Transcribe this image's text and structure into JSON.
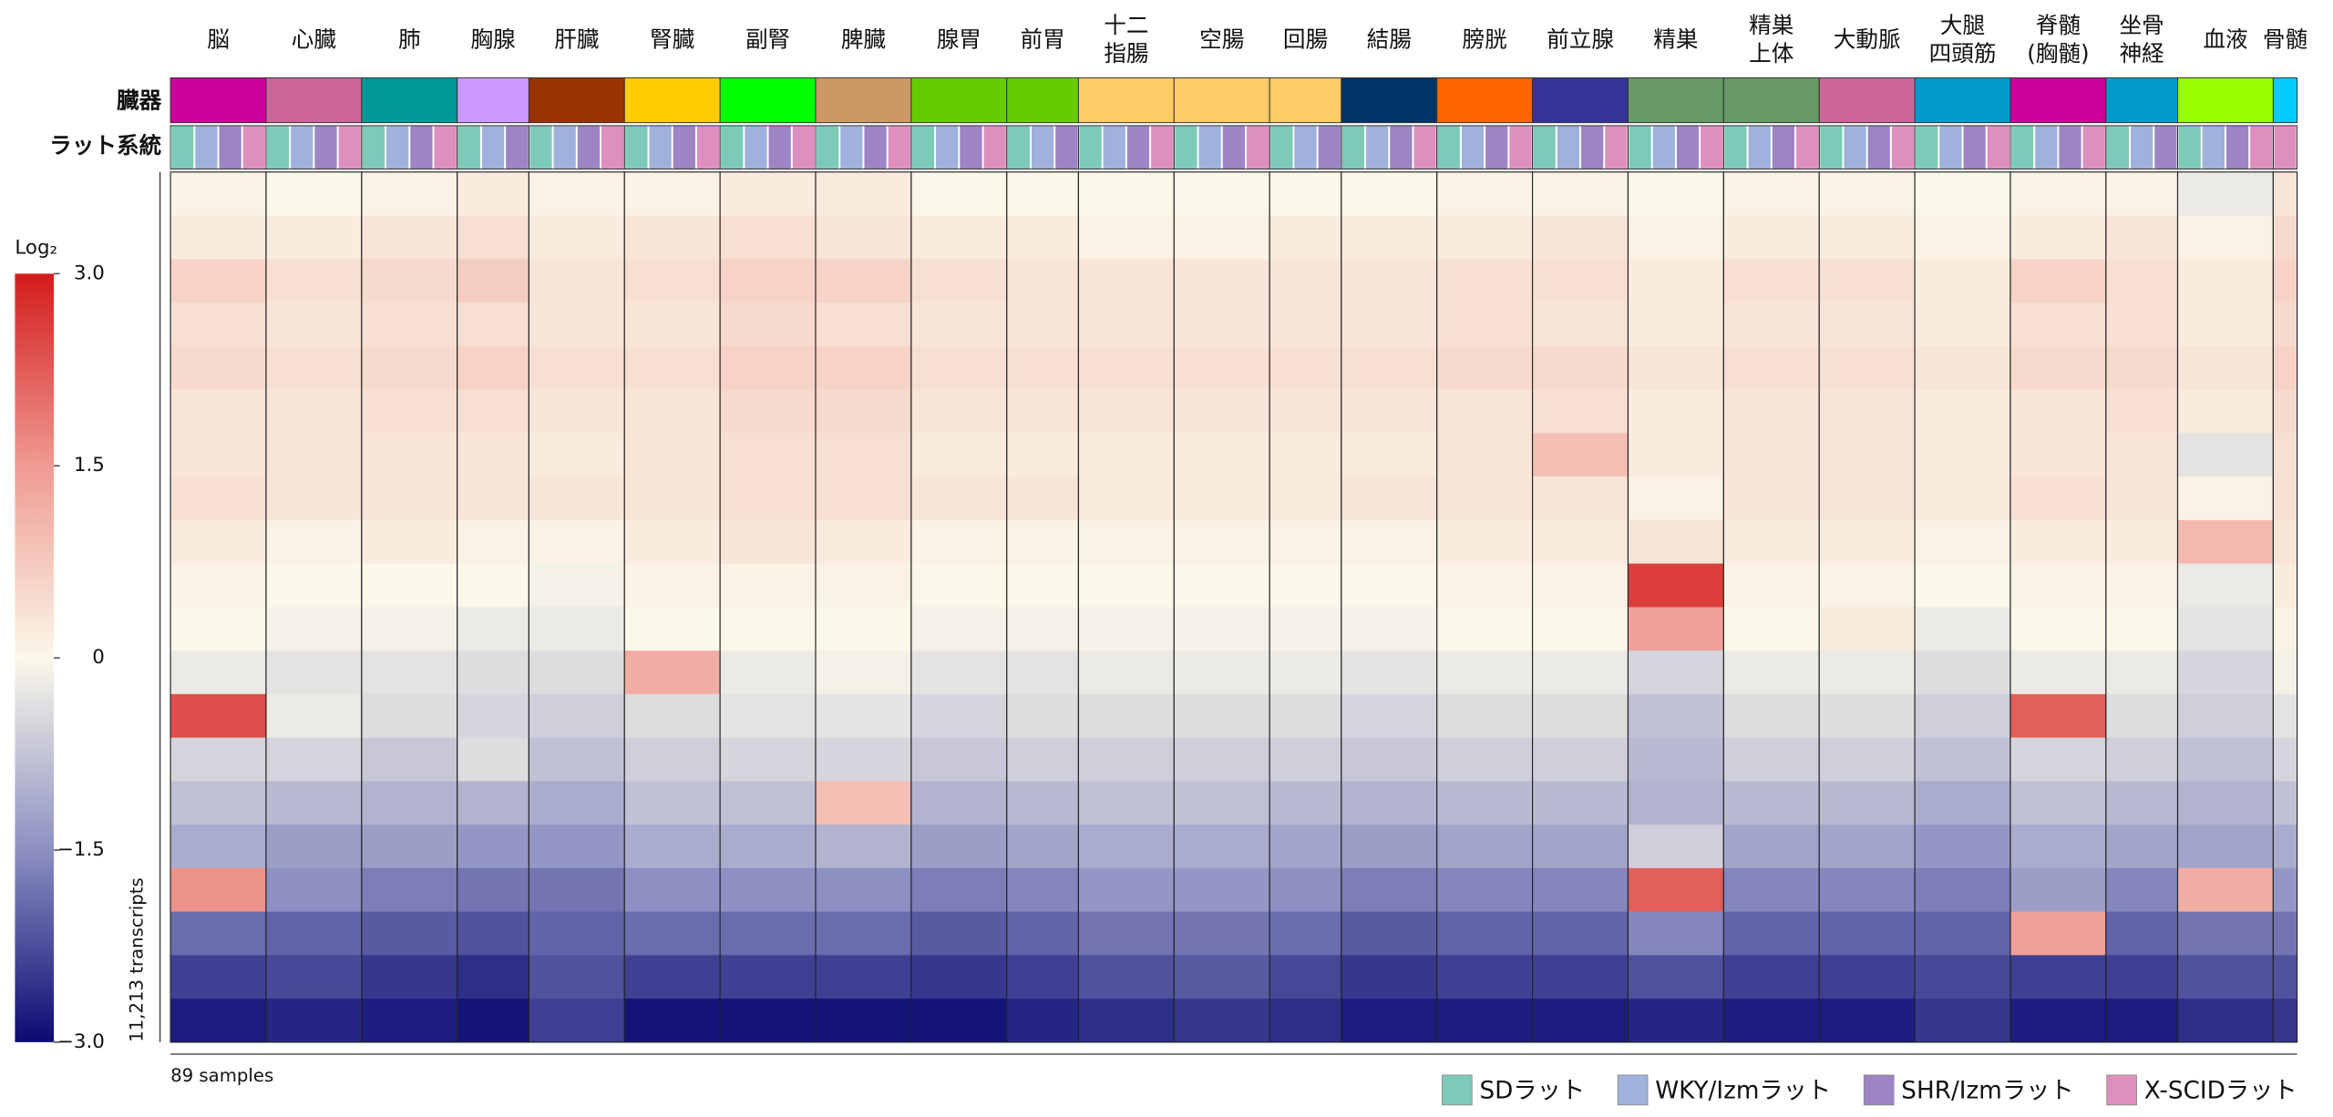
{
  "chart_data": {
    "type": "heatmap",
    "row_labels": [
      "臓器",
      "ラット系統"
    ],
    "colorbar_title": "Log₂",
    "y_label": "11,213 transcripts",
    "x_label": "89 samples",
    "clim": [
      -3,
      3
    ],
    "cticks": [
      {
        "value": -3,
        "label": "−3.0"
      },
      {
        "value": -1.5,
        "label": "−1.5"
      },
      0,
      1.5,
      {
        "value": 3,
        "label": "3.0"
      }
    ],
    "colormap": [
      "#0b0b73",
      "#8c90c2",
      "#fbf8ea",
      "#ef9a92",
      "#d41c1c"
    ],
    "legend": "bottom-right",
    "strains": [
      {
        "name": "SDラット",
        "color": "#7ecab9"
      },
      {
        "name": "WKY/Izmラット",
        "color": "#9fb1dc"
      },
      {
        "name": "SHR/Izmラット",
        "color": "#9d84c4"
      },
      {
        "name": "X-SCIDラット",
        "color": "#de8fbf"
      }
    ],
    "organs": [
      {
        "name": "脳",
        "color": "#cc0099",
        "strains": [
          0,
          1,
          2,
          3
        ],
        "values": [
          0.1,
          0.2,
          0.6,
          0.4,
          0.5,
          0.3,
          0.3,
          0.4,
          0.2,
          0.1,
          0.0,
          -0.2,
          2.4,
          -0.5,
          -0.8,
          -1.1,
          1.6,
          -1.9,
          -2.4,
          -2.8
        ]
      },
      {
        "name": "心臓",
        "color": "#cc6699",
        "strains": [
          0,
          1,
          2,
          3
        ],
        "values": [
          0.0,
          0.2,
          0.4,
          0.3,
          0.4,
          0.3,
          0.3,
          0.3,
          0.1,
          0.0,
          -0.1,
          -0.3,
          -0.2,
          -0.5,
          -0.9,
          -1.3,
          -1.5,
          -2.0,
          -2.3,
          -2.7
        ]
      },
      {
        "name": "肺",
        "color": "#009999",
        "strains": [
          0,
          1,
          2,
          3
        ],
        "values": [
          0.1,
          0.3,
          0.5,
          0.4,
          0.5,
          0.4,
          0.3,
          0.3,
          0.2,
          0.0,
          -0.1,
          -0.3,
          -0.4,
          -0.7,
          -1.0,
          -1.3,
          -1.7,
          -2.1,
          -2.5,
          -2.8
        ]
      },
      {
        "name": "胸腺",
        "color": "#cc99ff",
        "strains": [
          0,
          1,
          2
        ],
        "values": [
          0.2,
          0.4,
          0.7,
          0.4,
          0.6,
          0.4,
          0.3,
          0.3,
          0.1,
          0.0,
          -0.2,
          -0.4,
          -0.5,
          -0.4,
          -1.0,
          -1.4,
          -1.8,
          -2.2,
          -2.6,
          -2.9
        ]
      },
      {
        "name": "肝臓",
        "color": "#993300",
        "strains": [
          0,
          1,
          2,
          3
        ],
        "values": [
          0.1,
          0.2,
          0.3,
          0.3,
          0.4,
          0.3,
          0.2,
          0.3,
          0.1,
          -0.1,
          -0.2,
          -0.4,
          -0.6,
          -0.8,
          -1.1,
          -1.4,
          -1.8,
          -2.0,
          -2.2,
          -2.4
        ]
      },
      {
        "name": "腎臓",
        "color": "#ffcc00",
        "strains": [
          0,
          1,
          2,
          3
        ],
        "values": [
          0.1,
          0.3,
          0.4,
          0.3,
          0.4,
          0.3,
          0.3,
          0.3,
          0.2,
          0.1,
          0.0,
          1.2,
          -0.4,
          -0.6,
          -0.8,
          -1.1,
          -1.5,
          -1.9,
          -2.4,
          -2.9
        ]
      },
      {
        "name": "副腎",
        "color": "#00ff00",
        "strains": [
          0,
          1,
          2,
          3
        ],
        "values": [
          0.2,
          0.4,
          0.6,
          0.5,
          0.6,
          0.5,
          0.4,
          0.4,
          0.3,
          0.1,
          0.0,
          -0.2,
          -0.3,
          -0.5,
          -0.8,
          -1.1,
          -1.5,
          -1.9,
          -2.4,
          -2.9
        ]
      },
      {
        "name": "脾臓",
        "color": "#cc9966",
        "strains": [
          0,
          1,
          2,
          3
        ],
        "values": [
          0.2,
          0.3,
          0.6,
          0.4,
          0.6,
          0.5,
          0.4,
          0.4,
          0.2,
          0.1,
          0.0,
          -0.1,
          -0.3,
          -0.5,
          0.9,
          -1.0,
          -1.5,
          -1.9,
          -2.4,
          -2.9
        ]
      },
      {
        "name": "腺胃",
        "color": "#66cc00",
        "strains": [
          0,
          1,
          2,
          3
        ],
        "values": [
          0.0,
          0.2,
          0.4,
          0.3,
          0.4,
          0.3,
          0.2,
          0.3,
          0.1,
          0.0,
          -0.1,
          -0.3,
          -0.5,
          -0.7,
          -1.0,
          -1.3,
          -1.7,
          -2.1,
          -2.5,
          -2.9
        ]
      },
      {
        "name": "前胃",
        "color": "#66cc00",
        "strains": [
          0,
          1,
          2
        ],
        "values": [
          0.0,
          0.2,
          0.3,
          0.3,
          0.4,
          0.3,
          0.2,
          0.3,
          0.1,
          0.0,
          -0.1,
          -0.3,
          -0.4,
          -0.6,
          -0.9,
          -1.2,
          -1.6,
          -2.0,
          -2.4,
          -2.7
        ]
      },
      {
        "name": "十二\n指腸",
        "color": "#ffcc66",
        "strains": [
          0,
          1,
          2,
          3
        ],
        "values": [
          0.0,
          0.1,
          0.3,
          0.3,
          0.4,
          0.3,
          0.2,
          0.2,
          0.1,
          0.0,
          -0.1,
          -0.2,
          -0.4,
          -0.6,
          -0.8,
          -1.1,
          -1.4,
          -1.8,
          -2.2,
          -2.6
        ]
      },
      {
        "name": "空腸",
        "color": "#ffcc66",
        "strains": [
          0,
          1,
          2,
          3
        ],
        "values": [
          0.0,
          0.1,
          0.3,
          0.3,
          0.4,
          0.3,
          0.2,
          0.2,
          0.1,
          0.0,
          -0.1,
          -0.2,
          -0.4,
          -0.6,
          -0.8,
          -1.1,
          -1.4,
          -1.8,
          -2.1,
          -2.5
        ]
      },
      {
        "name": "回腸",
        "color": "#ffcc66",
        "strains": [
          0,
          1,
          2
        ],
        "values": [
          0.0,
          0.2,
          0.3,
          0.3,
          0.4,
          0.3,
          0.2,
          0.2,
          0.1,
          0.0,
          -0.1,
          -0.2,
          -0.4,
          -0.6,
          -0.9,
          -1.2,
          -1.5,
          -1.9,
          -2.3,
          -2.6
        ]
      },
      {
        "name": "結腸",
        "color": "#003366",
        "strains": [
          0,
          1,
          2,
          3
        ],
        "values": [
          0.0,
          0.2,
          0.3,
          0.3,
          0.4,
          0.3,
          0.2,
          0.3,
          0.1,
          0.0,
          -0.1,
          -0.3,
          -0.5,
          -0.7,
          -1.0,
          -1.3,
          -1.7,
          -2.1,
          -2.5,
          -2.8
        ]
      },
      {
        "name": "膀胱",
        "color": "#ff6600",
        "strains": [
          0,
          1,
          2,
          3
        ],
        "values": [
          0.1,
          0.2,
          0.4,
          0.4,
          0.5,
          0.3,
          0.3,
          0.3,
          0.2,
          0.1,
          0.0,
          -0.2,
          -0.4,
          -0.6,
          -0.9,
          -1.2,
          -1.6,
          -2.0,
          -2.4,
          -2.8
        ]
      },
      {
        "name": "前立腺",
        "color": "#333399",
        "strains": [
          0,
          1,
          2,
          3
        ],
        "values": [
          0.1,
          0.3,
          0.4,
          0.3,
          0.5,
          0.4,
          0.9,
          0.3,
          0.2,
          0.1,
          0.0,
          -0.2,
          -0.4,
          -0.6,
          -0.9,
          -1.2,
          -1.6,
          -2.0,
          -2.4,
          -2.8
        ]
      },
      {
        "name": "精巣",
        "color": "#669966",
        "strains": [
          0,
          1,
          2,
          3
        ],
        "values": [
          0.0,
          0.1,
          0.2,
          0.2,
          0.3,
          0.2,
          0.2,
          0.1,
          0.3,
          2.6,
          1.4,
          -0.5,
          -0.8,
          -0.9,
          -1.0,
          -0.6,
          2.2,
          -1.6,
          -2.2,
          -2.7
        ]
      },
      {
        "name": "精巣\n上体",
        "color": "#669966",
        "strains": [
          0,
          1,
          2,
          3
        ],
        "values": [
          0.1,
          0.2,
          0.4,
          0.3,
          0.4,
          0.3,
          0.3,
          0.3,
          0.2,
          0.1,
          0.0,
          -0.2,
          -0.4,
          -0.6,
          -0.9,
          -1.2,
          -1.6,
          -2.0,
          -2.4,
          -2.8
        ]
      },
      {
        "name": "大動脈",
        "color": "#cc6699",
        "strains": [
          0,
          1,
          2,
          3
        ],
        "values": [
          0.1,
          0.2,
          0.4,
          0.3,
          0.4,
          0.3,
          0.3,
          0.3,
          0.2,
          0.1,
          0.2,
          -0.2,
          -0.4,
          -0.6,
          -0.9,
          -1.2,
          -1.6,
          -2.0,
          -2.4,
          -2.8
        ]
      },
      {
        "name": "大腿\n四頭筋",
        "color": "#0099cc",
        "strains": [
          0,
          1,
          2,
          3
        ],
        "values": [
          0.0,
          0.1,
          0.2,
          0.2,
          0.3,
          0.2,
          0.2,
          0.2,
          0.1,
          0.0,
          -0.2,
          -0.4,
          -0.6,
          -0.8,
          -1.1,
          -1.4,
          -1.7,
          -2.0,
          -2.3,
          -2.5
        ]
      },
      {
        "name": "脊髄\n(胸髄)",
        "color": "#cc0099",
        "strains": [
          0,
          1,
          2,
          3
        ],
        "values": [
          0.1,
          0.2,
          0.6,
          0.4,
          0.5,
          0.3,
          0.3,
          0.4,
          0.2,
          0.1,
          0.0,
          -0.2,
          2.2,
          -0.5,
          -0.8,
          -1.1,
          -1.3,
          1.4,
          -2.4,
          -2.8
        ]
      },
      {
        "name": "坐骨\n神経",
        "color": "#0099cc",
        "strains": [
          0,
          1,
          2
        ],
        "values": [
          0.1,
          0.3,
          0.4,
          0.4,
          0.5,
          0.4,
          0.3,
          0.3,
          0.2,
          0.1,
          0.0,
          -0.2,
          -0.4,
          -0.6,
          -0.9,
          -1.2,
          -1.6,
          -2.0,
          -2.4,
          -2.8
        ]
      },
      {
        "name": "血液",
        "color": "#99ff00",
        "strains": [
          0,
          1,
          2,
          3
        ],
        "values": [
          -0.2,
          0.1,
          0.2,
          0.2,
          0.3,
          0.2,
          -0.3,
          0.1,
          1.0,
          -0.2,
          -0.3,
          -0.5,
          -0.6,
          -0.8,
          -1.0,
          -1.2,
          1.2,
          -1.8,
          -2.2,
          -2.6
        ]
      },
      {
        "name": "骨髄",
        "color": "#00ccff",
        "strains": [
          3
        ],
        "values": [
          0.3,
          0.5,
          0.6,
          0.5,
          0.6,
          0.5,
          0.4,
          0.4,
          0.3,
          0.2,
          0.1,
          -0.1,
          -0.3,
          -0.5,
          -0.8,
          -1.1,
          -1.4,
          -1.8,
          -2.2,
          -2.5
        ]
      }
    ]
  }
}
